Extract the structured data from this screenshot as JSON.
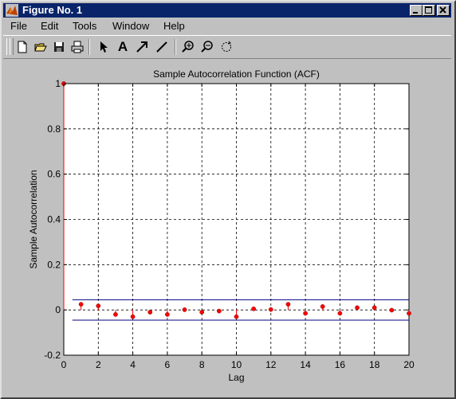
{
  "window": {
    "title": "Figure No. 1"
  },
  "menu": [
    {
      "label": "File"
    },
    {
      "label": "Edit"
    },
    {
      "label": "Tools"
    },
    {
      "label": "Window"
    },
    {
      "label": "Help"
    }
  ],
  "toolbar": {
    "buttons": [
      {
        "icon": "new-file-icon"
      },
      {
        "icon": "open-folder-icon"
      },
      {
        "icon": "save-disk-icon"
      },
      {
        "icon": "print-icon"
      },
      {
        "icon": "pointer-arrow-icon"
      },
      {
        "icon": "text-insert-icon"
      },
      {
        "icon": "arrow-insert-icon"
      },
      {
        "icon": "line-insert-icon"
      },
      {
        "icon": "zoom-in-icon"
      },
      {
        "icon": "zoom-out-icon"
      },
      {
        "icon": "rotate-icon"
      }
    ],
    "text_button_label": "A"
  },
  "chart_data": {
    "type": "stem",
    "title": "Sample Autocorrelation Function (ACF)",
    "xlabel": "Lag",
    "ylabel": "Sample Autocorrelation",
    "xlim": [
      0,
      20
    ],
    "ylim": [
      -0.2,
      1
    ],
    "xticks": [
      0,
      2,
      4,
      6,
      8,
      10,
      12,
      14,
      16,
      18,
      20
    ],
    "yticks": [
      -0.2,
      0,
      0.2,
      0.4,
      0.6,
      0.8,
      1
    ],
    "ytick_labels": [
      "-0.2",
      "0",
      "0.2",
      "0.4",
      "0.6",
      "0.8",
      "1"
    ],
    "grid": true,
    "lags": [
      0,
      1,
      2,
      3,
      4,
      5,
      6,
      7,
      8,
      9,
      10,
      11,
      12,
      13,
      14,
      15,
      16,
      17,
      18,
      19,
      20
    ],
    "acf": [
      1,
      0.025,
      0.018,
      -0.02,
      -0.03,
      -0.01,
      -0.02,
      0.001,
      -0.01,
      -0.005,
      -0.03,
      0.005,
      0.002,
      0.025,
      -0.015,
      0.015,
      -0.015,
      0.01,
      0.01,
      -0.001,
      -0.015
    ],
    "confidence_bounds": [
      0.045,
      -0.045
    ],
    "bound_x_range": [
      0.5,
      20
    ],
    "colors": {
      "stem": "#ff0000",
      "bounds": "#000080",
      "axes": "#000000",
      "grid": "#000000"
    }
  }
}
